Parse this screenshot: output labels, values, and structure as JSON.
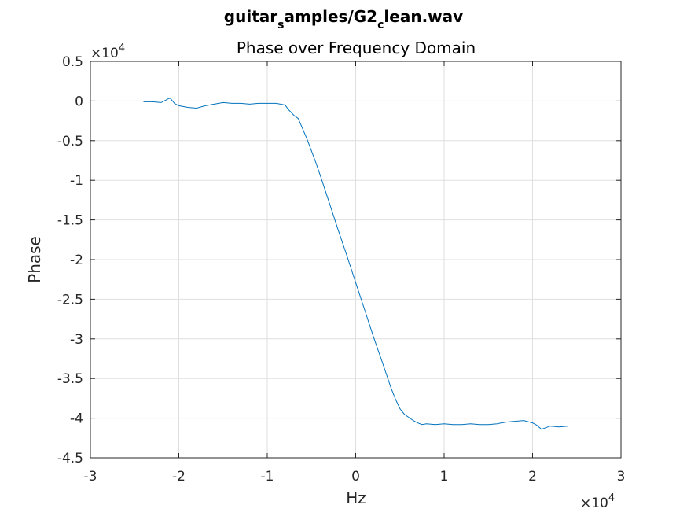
{
  "chart_data": {
    "type": "line",
    "title_parts": [
      "guitar",
      "s",
      "amples/G2",
      "c",
      "lean.wav"
    ],
    "subtitle": "Phase over Frequency Domain",
    "xlabel": "Hz",
    "ylabel": "Phase",
    "x_multiplier_base": "×10",
    "x_multiplier_exp": "4",
    "y_multiplier_base": "×10",
    "y_multiplier_exp": "4",
    "xlim": [
      -3,
      3
    ],
    "ylim": [
      -4.5,
      0.5
    ],
    "xticks": [
      -3,
      -2,
      -1,
      0,
      1,
      2,
      3
    ],
    "xtick_labels": [
      "-3",
      "-2",
      "-1",
      "0",
      "1",
      "2",
      "3"
    ],
    "yticks": [
      0.5,
      0,
      -0.5,
      -1,
      -1.5,
      -2,
      -2.5,
      -3,
      -3.5,
      -4,
      -4.5
    ],
    "ytick_labels": [
      "0.5",
      "0",
      "-0.5",
      "-1",
      "-1.5",
      "-2",
      "-2.5",
      "-3",
      "-3.5",
      "-4",
      "-4.5"
    ],
    "grid": true,
    "line_color": "#0072bd",
    "series": [
      {
        "name": "phase",
        "x": [
          -2.4,
          -2.3,
          -2.2,
          -2.15,
          -2.1,
          -2.05,
          -2.0,
          -1.9,
          -1.8,
          -1.7,
          -1.6,
          -1.5,
          -1.4,
          -1.3,
          -1.2,
          -1.1,
          -1.0,
          -0.9,
          -0.85,
          -0.8,
          -0.75,
          -0.7,
          -0.65,
          -0.6,
          -0.55,
          -0.5,
          -0.45,
          -0.4,
          -0.3,
          -0.2,
          -0.1,
          0.0,
          0.1,
          0.2,
          0.3,
          0.4,
          0.45,
          0.5,
          0.55,
          0.6,
          0.65,
          0.7,
          0.75,
          0.8,
          0.9,
          1.0,
          1.1,
          1.2,
          1.3,
          1.4,
          1.5,
          1.6,
          1.7,
          1.8,
          1.9,
          2.0,
          2.05,
          2.1,
          2.15,
          2.2,
          2.3,
          2.4
        ],
        "y": [
          -0.01,
          -0.01,
          -0.02,
          0.01,
          0.04,
          -0.03,
          -0.06,
          -0.08,
          -0.09,
          -0.06,
          -0.04,
          -0.02,
          -0.03,
          -0.03,
          -0.04,
          -0.03,
          -0.03,
          -0.03,
          -0.04,
          -0.05,
          -0.12,
          -0.18,
          -0.22,
          -0.35,
          -0.48,
          -0.63,
          -0.78,
          -0.94,
          -1.28,
          -1.62,
          -1.95,
          -2.29,
          -2.63,
          -2.97,
          -3.29,
          -3.62,
          -3.76,
          -3.88,
          -3.95,
          -3.99,
          -4.03,
          -4.06,
          -4.08,
          -4.07,
          -4.08,
          -4.07,
          -4.08,
          -4.08,
          -4.07,
          -4.08,
          -4.08,
          -4.07,
          -4.05,
          -4.04,
          -4.03,
          -4.06,
          -4.09,
          -4.14,
          -4.12,
          -4.1,
          -4.11,
          -4.1
        ]
      }
    ]
  }
}
